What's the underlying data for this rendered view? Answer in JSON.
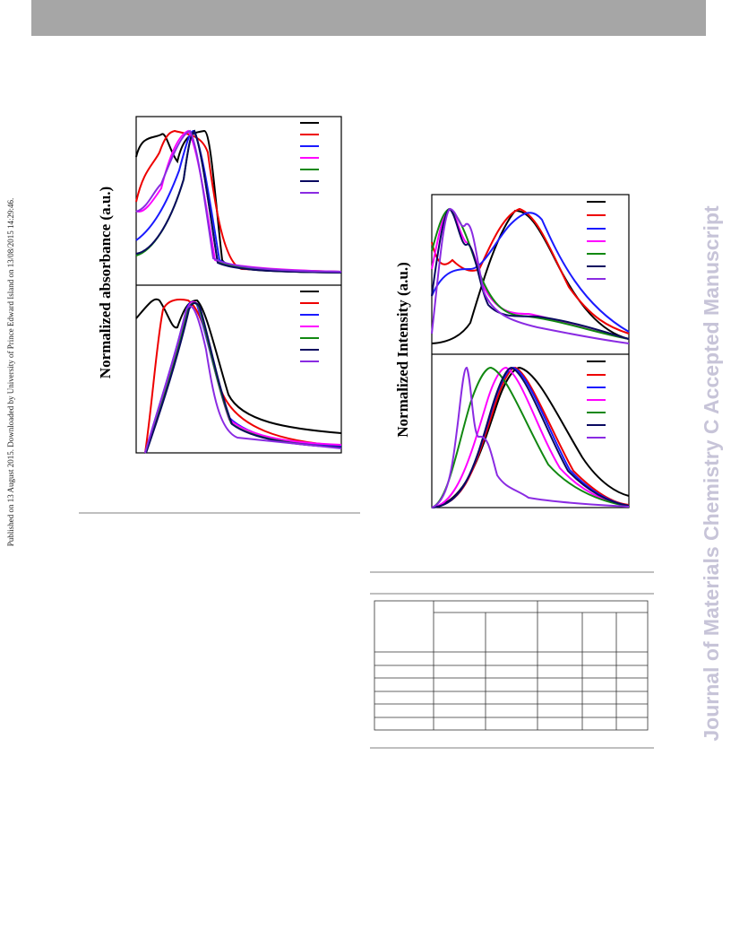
{
  "side_note": "Published on 13 August 2015. Downloaded by University of Prince Edward Island on 13/08/2015 14:29:46.",
  "watermark": "Journal of Materials Chemistry C Accepted Manuscript",
  "figures": [
    {
      "y_label": "Normalized absorbance (a.u.)"
    },
    {
      "y_label": "Normalized Intensity (a.u.)"
    }
  ]
}
